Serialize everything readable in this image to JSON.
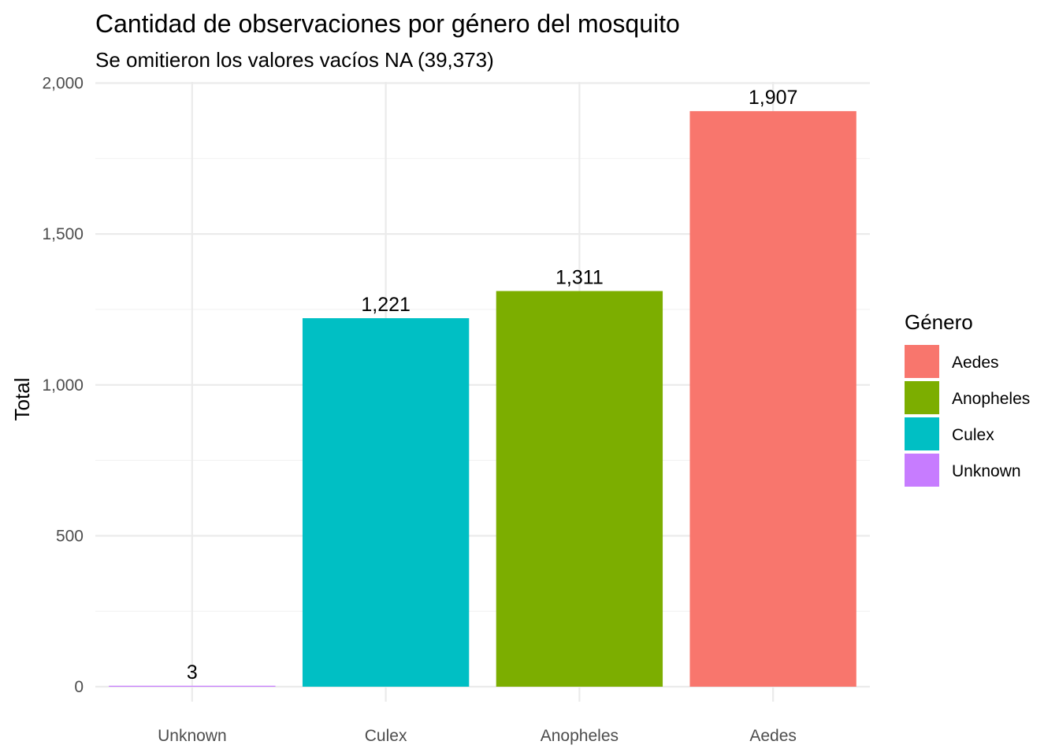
{
  "chart_data": {
    "type": "bar",
    "title": "Cantidad de observaciones por género del mosquito",
    "subtitle": "Se omitieron los valores vacíos NA (39,373)",
    "xlabel": "",
    "ylabel": "Total",
    "categories": [
      "Unknown",
      "Culex",
      "Anopheles",
      "Aedes"
    ],
    "values": [
      3,
      1221,
      1311,
      1907
    ],
    "value_labels": [
      "3",
      "1,221",
      "1,311",
      "1,907"
    ],
    "colors": [
      "#C77CFF",
      "#00BFC4",
      "#7CAE00",
      "#F8766D"
    ],
    "ylim": [
      0,
      2000
    ],
    "y_ticks": [
      0,
      500,
      1000,
      1500,
      2000
    ],
    "y_tick_labels": [
      "0",
      "500",
      "1,000",
      "1,500",
      "2,000"
    ],
    "grid": true,
    "legend": {
      "title": "Género",
      "placement": "right",
      "entries": [
        {
          "label": "Aedes",
          "color": "#F8766D"
        },
        {
          "label": "Anopheles",
          "color": "#7CAE00"
        },
        {
          "label": "Culex",
          "color": "#00BFC4"
        },
        {
          "label": "Unknown",
          "color": "#C77CFF"
        }
      ]
    }
  }
}
